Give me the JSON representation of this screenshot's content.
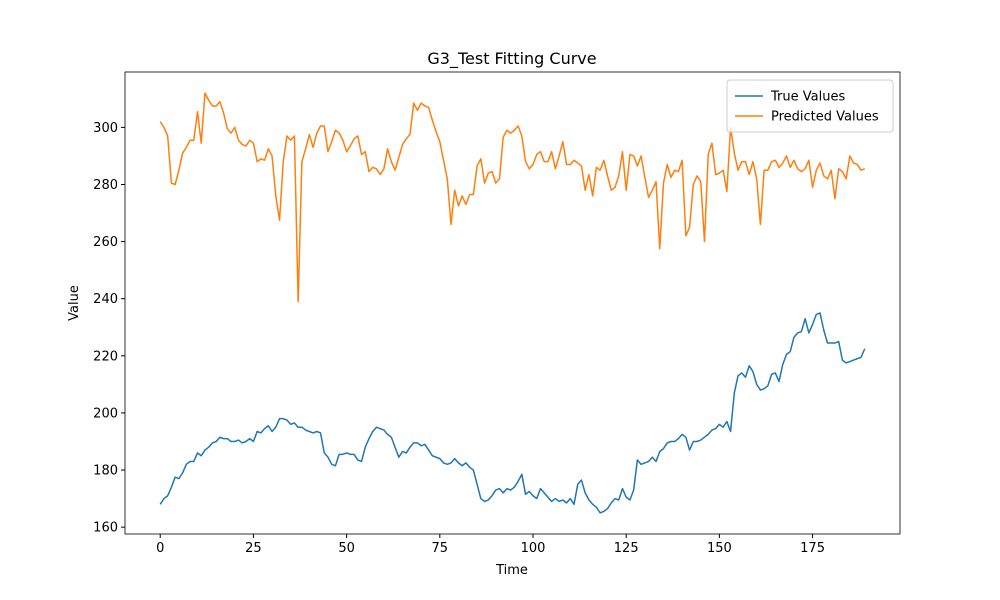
{
  "chart_data": {
    "type": "line",
    "title": "G3_Test Fitting Curve",
    "x_label": "Time",
    "y_label": "Value",
    "x": [
      0,
      1,
      2,
      3,
      4,
      5,
      6,
      7,
      8,
      9,
      10,
      11,
      12,
      13,
      14,
      15,
      16,
      17,
      18,
      19,
      20,
      21,
      22,
      23,
      24,
      25,
      26,
      27,
      28,
      29,
      30,
      31,
      32,
      33,
      34,
      35,
      36,
      37,
      38,
      39,
      40,
      41,
      42,
      43,
      44,
      45,
      46,
      47,
      48,
      49,
      50,
      51,
      52,
      53,
      54,
      55,
      56,
      57,
      58,
      59,
      60,
      61,
      62,
      63,
      64,
      65,
      66,
      67,
      68,
      69,
      70,
      71,
      72,
      73,
      74,
      75,
      76,
      77,
      78,
      79,
      80,
      81,
      82,
      83,
      84,
      85,
      86,
      87,
      88,
      89,
      90,
      91,
      92,
      93,
      94,
      95,
      96,
      97,
      98,
      99,
      100,
      101,
      102,
      103,
      104,
      105,
      106,
      107,
      108,
      109,
      110,
      111,
      112,
      113,
      114,
      115,
      116,
      117,
      118,
      119,
      120,
      121,
      122,
      123,
      124,
      125,
      126,
      127,
      128,
      129,
      130,
      131,
      132,
      133,
      134,
      135,
      136,
      137,
      138,
      139,
      140,
      141,
      142,
      143,
      144,
      145,
      146,
      147,
      148,
      149,
      150,
      151,
      152,
      153,
      154,
      155,
      156,
      157,
      158,
      159,
      160,
      161,
      162,
      163,
      164,
      165,
      166,
      167,
      168,
      169,
      170,
      171,
      172,
      173,
      174,
      175,
      176,
      177,
      178,
      179,
      180,
      181,
      182,
      183,
      184,
      185,
      186,
      187,
      188,
      189
    ],
    "series": [
      {
        "name": "True Values",
        "color": "#1f77b4",
        "values": [
          168,
          170,
          171,
          174,
          177.5,
          177,
          179,
          182,
          183,
          183,
          186,
          185,
          187,
          188,
          189.5,
          190,
          191.5,
          191,
          191,
          190,
          190,
          190.5,
          189.5,
          190,
          191,
          190,
          193.5,
          193,
          194.5,
          195.5,
          193.5,
          195,
          198,
          198,
          197.5,
          196,
          196.5,
          195,
          195,
          194,
          193.5,
          193,
          193.5,
          193,
          186,
          184.5,
          182,
          181.5,
          185.5,
          185.5,
          186,
          185.5,
          185.5,
          183.5,
          183,
          188,
          191,
          193.5,
          195,
          194.5,
          194,
          192.5,
          191.5,
          188,
          184.5,
          186.5,
          186,
          188,
          189.5,
          189.5,
          188.5,
          189,
          187,
          185,
          184.5,
          184,
          182.5,
          182,
          182.5,
          184,
          182.5,
          181.5,
          182.5,
          181,
          180,
          175,
          170,
          169,
          169.5,
          171,
          173,
          173.5,
          172,
          173.5,
          173,
          174,
          176,
          178.5,
          171.5,
          172.5,
          171,
          170,
          173.5,
          172,
          170.5,
          169,
          170,
          169,
          169.5,
          168.5,
          170,
          168,
          175,
          176.5,
          172,
          169.5,
          168,
          167,
          165,
          165.5,
          166.5,
          168.5,
          170,
          169.5,
          173.5,
          170.5,
          169.5,
          173,
          183.5,
          182,
          182.5,
          183,
          184.5,
          183,
          186.5,
          187.5,
          189.5,
          190,
          190,
          191,
          192.5,
          191.5,
          187,
          190,
          190,
          190.5,
          191.5,
          192.5,
          194,
          194.5,
          196,
          195,
          197,
          193.5,
          207,
          213,
          214,
          212.5,
          216.5,
          214.5,
          210,
          208,
          208.5,
          209.5,
          213.5,
          214,
          211,
          217,
          220.5,
          221.5,
          226.5,
          228,
          228.5,
          233,
          228,
          231,
          234.5,
          235,
          229,
          224.5,
          224.5,
          224.5,
          225,
          218.5,
          217.5,
          218,
          218.5,
          219,
          219.5,
          222.5
        ]
      },
      {
        "name": "Predicted Values",
        "color": "#ff7f0e",
        "values": [
          302,
          300,
          297,
          280.5,
          280,
          285,
          291,
          293,
          295.5,
          295.5,
          305.5,
          294.5,
          312,
          309.5,
          307.5,
          307.5,
          309,
          305,
          299.5,
          298,
          300,
          295.5,
          294,
          293.5,
          295.5,
          294.5,
          288,
          289,
          288.5,
          292.5,
          290,
          276,
          267.5,
          288,
          297,
          295.5,
          297,
          239,
          288,
          292.5,
          297.5,
          293,
          298,
          300.5,
          300.5,
          291.5,
          295,
          299,
          298,
          295.5,
          291.5,
          293.5,
          296,
          297,
          290.5,
          291.5,
          284.5,
          286,
          285.5,
          283.5,
          285.5,
          292.5,
          288,
          285,
          289.5,
          294,
          296,
          297.5,
          308.5,
          306,
          308.5,
          307.5,
          307,
          302.5,
          298.5,
          295,
          288.5,
          282,
          266,
          278,
          272.5,
          276,
          273,
          276.5,
          276.5,
          286.5,
          289,
          280.5,
          284,
          284.5,
          280.5,
          282,
          296.5,
          299,
          298,
          299,
          300.5,
          297,
          288,
          285.5,
          287,
          290.5,
          291.5,
          288,
          288,
          291.5,
          285.5,
          290,
          295,
          287,
          287,
          288.5,
          287.5,
          286.5,
          278,
          283.5,
          276,
          286,
          285,
          288.5,
          283,
          278,
          279,
          283,
          291.5,
          278,
          290.5,
          290,
          286.5,
          290,
          282.5,
          275.5,
          278,
          281,
          257.5,
          280.5,
          287,
          282.5,
          285,
          284.5,
          288.5,
          262,
          265,
          280,
          283,
          281,
          260,
          290.5,
          294.5,
          283.5,
          284,
          285,
          277.5,
          300,
          291,
          285,
          288,
          288,
          283.5,
          288,
          282,
          266,
          285,
          285,
          288,
          288.5,
          286,
          287.5,
          290,
          286,
          288.5,
          285.5,
          284.5,
          285.5,
          288.5,
          279,
          285,
          287.5,
          283,
          282,
          285,
          275,
          285.5,
          284.5,
          282,
          290,
          287.5,
          287,
          285,
          285.5
        ]
      }
    ],
    "xlim": [
      -9.45,
      198.45
    ],
    "xticks": [
      0,
      25,
      50,
      75,
      100,
      125,
      150,
      175
    ],
    "ylim": [
      157.6,
      319.4
    ],
    "yticks": [
      160,
      180,
      200,
      220,
      240,
      260,
      280,
      300
    ],
    "grid": false,
    "legend": "upper right"
  }
}
